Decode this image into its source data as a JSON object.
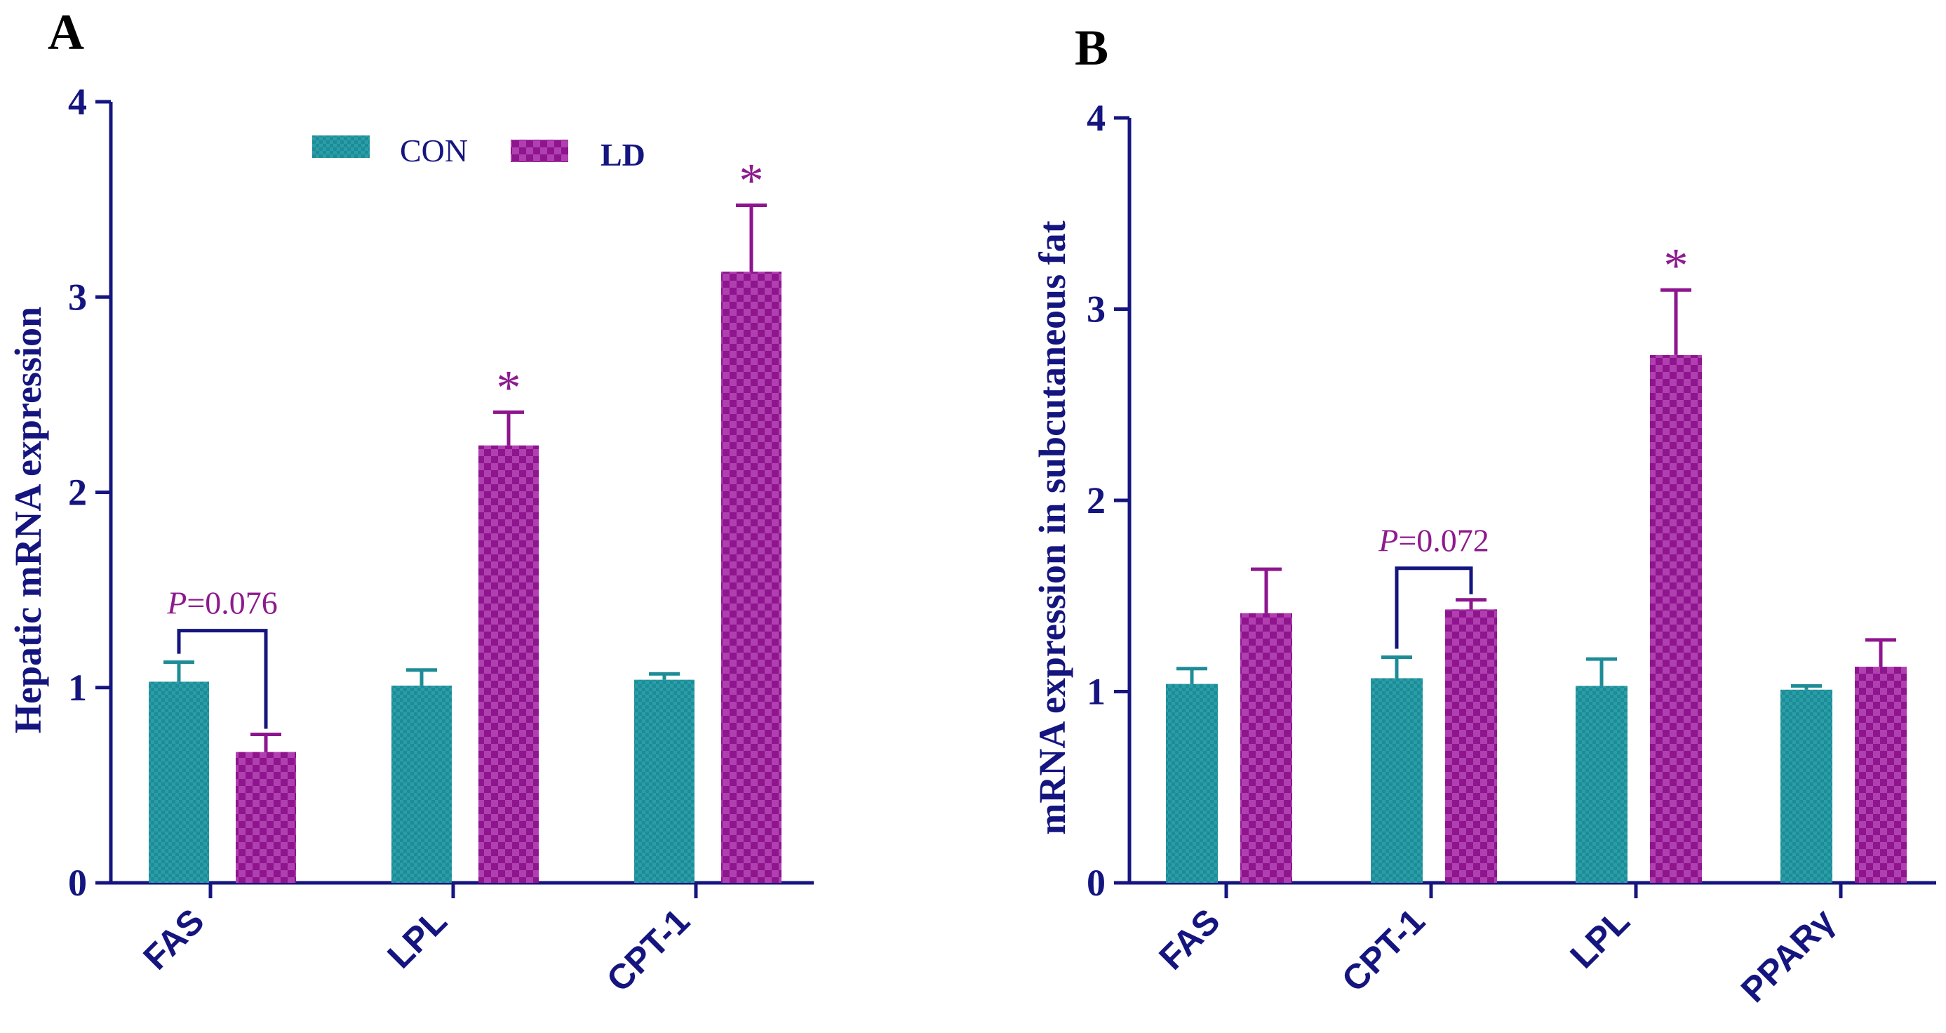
{
  "colors": {
    "axis": "#151580",
    "con": "#1E8C96",
    "ld": "#8E158E",
    "annotation": "#8E1A8E"
  },
  "legend": {
    "con_label": "CON",
    "ld_label": "LD"
  },
  "chart_data": [
    {
      "type": "bar",
      "panel": "A",
      "ylabel": "Hepatic mRNA expression",
      "xlabel": "",
      "ylim": [
        0,
        4
      ],
      "yticks": [
        "0",
        "1",
        "2",
        "3",
        "4"
      ],
      "categories": [
        "FAS",
        "LPL",
        "CPT-1"
      ],
      "series": [
        {
          "name": "CON",
          "values": [
            1.03,
            1.01,
            1.04
          ],
          "errors": [
            0.1,
            0.08,
            0.03
          ]
        },
        {
          "name": "LD",
          "values": [
            0.67,
            2.24,
            3.13
          ],
          "errors": [
            0.09,
            0.17,
            0.34
          ]
        }
      ],
      "significance": [
        {
          "category_index": 1,
          "label": "*"
        },
        {
          "category_index": 2,
          "label": "*"
        }
      ],
      "pvalue_annotations": [
        {
          "category_index": 0,
          "prefix": "P",
          "text": "=0.076"
        }
      ]
    },
    {
      "type": "bar",
      "panel": "B",
      "ylabel": "mRNA expression in subcutaneous fat",
      "xlabel": "",
      "ylim": [
        0,
        4
      ],
      "yticks": [
        "0",
        "1",
        "2",
        "3",
        "4"
      ],
      "categories": [
        "FAS",
        "CPT-1",
        "LPL",
        "PPARγ"
      ],
      "series": [
        {
          "name": "CON",
          "values": [
            1.04,
            1.07,
            1.03,
            1.01
          ],
          "errors": [
            0.08,
            0.11,
            0.14,
            0.02
          ]
        },
        {
          "name": "LD",
          "values": [
            1.41,
            1.43,
            2.76,
            1.13
          ],
          "errors": [
            0.23,
            0.05,
            0.34,
            0.14
          ]
        }
      ],
      "significance": [
        {
          "category_index": 2,
          "label": "*"
        }
      ],
      "pvalue_annotations": [
        {
          "category_index": 1,
          "prefix": "P",
          "text": "=0.072"
        }
      ]
    }
  ]
}
